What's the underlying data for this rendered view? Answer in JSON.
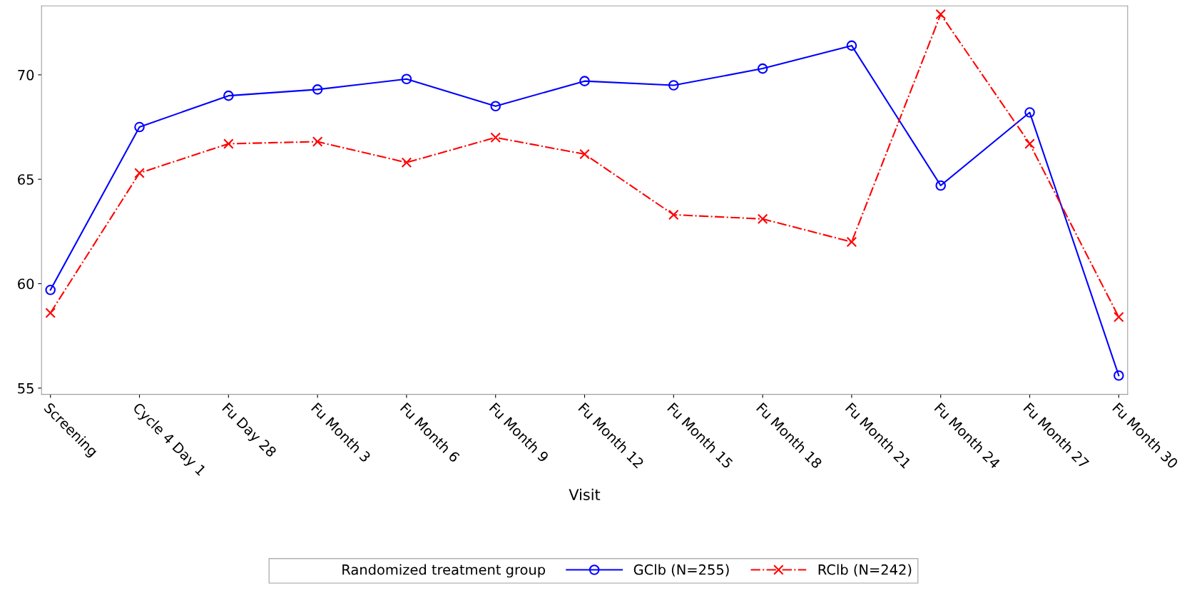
{
  "chart_data": {
    "type": "line",
    "xlabel": "Visit",
    "legend_title": "Randomized treatment group",
    "categories": [
      "Screening",
      "Cycle 4 Day 1",
      "Fu Day 28",
      "Fu Month 3",
      "Fu Month 6",
      "Fu Month 9",
      "Fu Month 12",
      "Fu Month 15",
      "Fu Month 18",
      "Fu Month 21",
      "Fu Month 24",
      "Fu Month 27",
      "Fu Month 30"
    ],
    "series": [
      {
        "name": "GClb (N=255)",
        "color": "#0000ff",
        "marker": "circle",
        "line_style": "solid",
        "values": [
          59.7,
          67.5,
          69.0,
          69.3,
          69.8,
          68.5,
          69.7,
          69.5,
          70.3,
          71.4,
          64.7,
          68.2,
          55.6
        ]
      },
      {
        "name": "RClb (N=242)",
        "color": "#ff0000",
        "marker": "cross",
        "line_style": "dashdot",
        "values": [
          58.6,
          65.3,
          66.7,
          66.8,
          65.8,
          67.0,
          66.2,
          63.3,
          63.1,
          62.0,
          72.9,
          66.7,
          58.4
        ]
      }
    ],
    "ylim": [
      54.7,
      73.3
    ],
    "yticks": [
      55,
      60,
      65,
      70
    ],
    "grid": false,
    "legend": "bottom"
  }
}
